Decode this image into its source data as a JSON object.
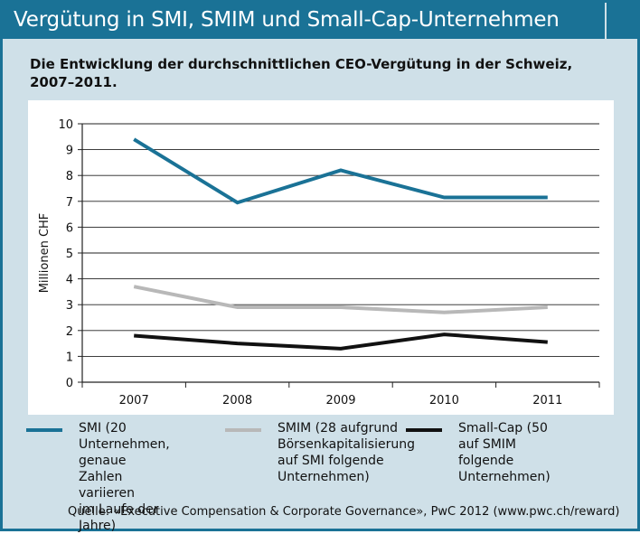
{
  "header": {
    "title": "Vergütung in SMI, SMIM und Small-Cap-Unternehmen",
    "subtitle": "Die Entwicklung der durchschnittlichen CEO-Vergütung in der Schweiz, 2007–2011."
  },
  "colors": {
    "brand": "#1a7296",
    "panel": "#cfe0e8",
    "smi": "#1a7296",
    "smim": "#b8b8b8",
    "smallcap": "#111111"
  },
  "chart_data": {
    "type": "line",
    "title": "Die Entwicklung der durchschnittlichen CEO-Vergütung in der Schweiz, 2007–2011.",
    "xlabel": "",
    "ylabel": "Millionen CHF",
    "categories": [
      "2007",
      "2008",
      "2009",
      "2010",
      "2011"
    ],
    "ylim": [
      0,
      10
    ],
    "yticks": [
      0,
      1,
      2,
      3,
      4,
      5,
      6,
      7,
      8,
      9,
      10
    ],
    "grid": true,
    "series": [
      {
        "name": "SMI (20 Unternehmen, genaue Zahlen variieren im Laufe der Jahre)",
        "values": [
          9.4,
          6.95,
          8.2,
          7.15,
          7.15
        ],
        "color": "#1a7296"
      },
      {
        "name": "SMIM (28 aufgrund Börsenkapitalisierung auf SMI folgende Unternehmen)",
        "values": [
          3.7,
          2.9,
          2.9,
          2.7,
          2.9
        ],
        "color": "#b8b8b8"
      },
      {
        "name": "Small-Cap (50 auf SMIM folgende Unternehmen)",
        "values": [
          1.8,
          1.5,
          1.3,
          1.85,
          1.55
        ],
        "color": "#111111"
      }
    ]
  },
  "legend": {
    "smi": [
      "SMI (20 Unternehmen,",
      "genaue Zahlen variieren",
      "im Laufe der Jahre)"
    ],
    "smim": [
      "SMIM (28 aufgrund",
      "Börsenkapitalisierung",
      "auf SMI folgende",
      "Unternehmen)"
    ],
    "smallcap": [
      "Small-Cap (50 auf SMIM",
      "folgende Unternehmen)"
    ]
  },
  "source": "Quelle: «Executive Compensation & Corporate Governance», PwC 2012 (www.pwc.ch/reward)"
}
